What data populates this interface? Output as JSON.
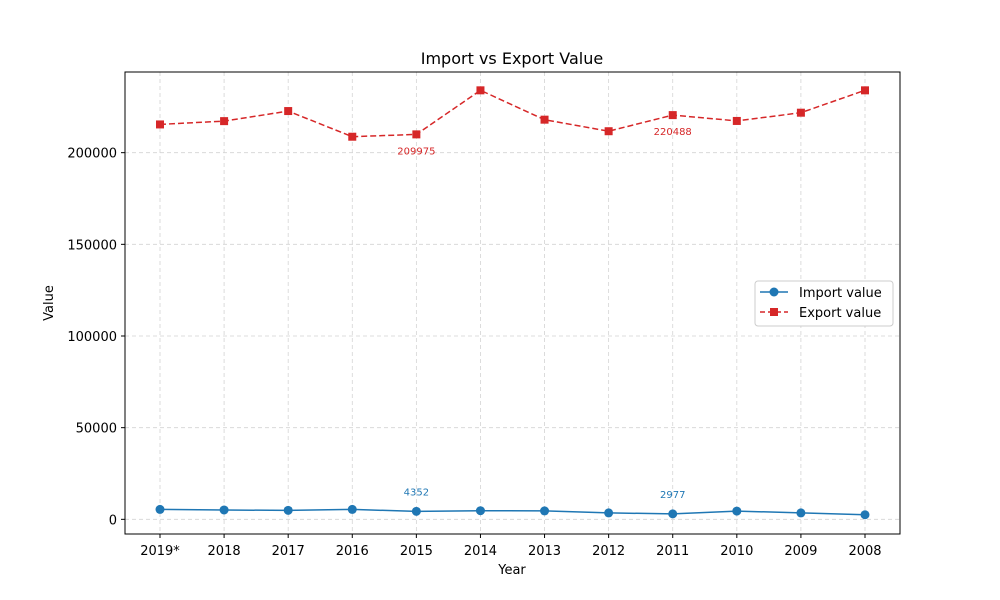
{
  "chart_data": {
    "type": "line",
    "title": "Import vs Export Value",
    "xlabel": "Year",
    "ylabel": "Value",
    "categories": [
      "2019*",
      "2018",
      "2017",
      "2016",
      "2015",
      "2014",
      "2013",
      "2012",
      "2011",
      "2010",
      "2009",
      "2008"
    ],
    "ylim": [
      -8000,
      244000
    ],
    "yticks": [
      0,
      50000,
      100000,
      150000,
      200000
    ],
    "grid": true,
    "legend_position": "center-right",
    "series": [
      {
        "name": "Import value",
        "color": "#1f77b4",
        "marker": "circle",
        "linestyle": "solid",
        "values": [
          5400,
          5100,
          4900,
          5400,
          4352,
          4700,
          4600,
          3500,
          2977,
          4500,
          3500,
          2500
        ]
      },
      {
        "name": "Export value",
        "color": "#d62728",
        "marker": "square",
        "linestyle": "dashed",
        "values": [
          215400,
          217200,
          222700,
          208700,
          209975,
          234000,
          218000,
          211700,
          220488,
          217300,
          221800,
          234000
        ]
      }
    ],
    "annotations": [
      {
        "series": 0,
        "index": 4,
        "text": "4352",
        "placement": "above"
      },
      {
        "series": 0,
        "index": 8,
        "text": "2977",
        "placement": "above"
      },
      {
        "series": 1,
        "index": 4,
        "text": "209975",
        "placement": "below"
      },
      {
        "series": 1,
        "index": 8,
        "text": "220488",
        "placement": "below"
      }
    ]
  }
}
